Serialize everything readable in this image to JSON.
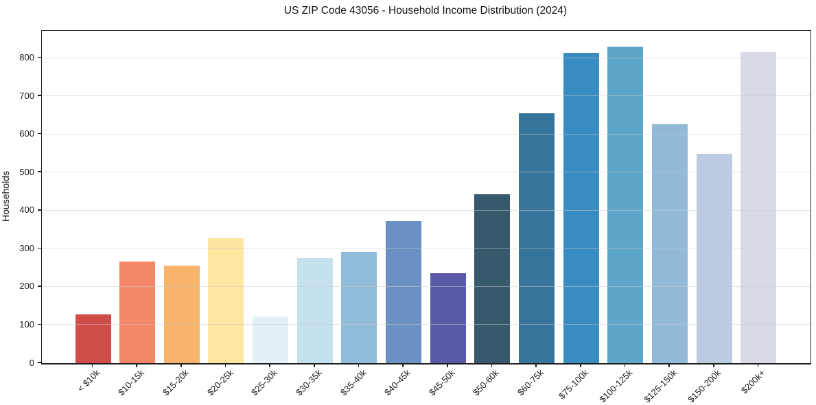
{
  "chart_data": {
    "type": "bar",
    "title": "US ZIP Code 43056 - Household Income Distribution (2024)",
    "xlabel": "",
    "ylabel": "Households",
    "categories": [
      "< $10k",
      "$10-15k",
      "$15-20k",
      "$20-25k",
      "$25-30k",
      "$30-35k",
      "$35-40k",
      "$40-45k",
      "$45-50k",
      "$50-60k",
      "$60-75k",
      "$75-100k",
      "$100-125k",
      "$125-150k",
      "$150-200k",
      "$200k+"
    ],
    "values": [
      128,
      267,
      256,
      327,
      122,
      275,
      291,
      372,
      235,
      442,
      655,
      814,
      830,
      627,
      549,
      815
    ],
    "bar_colors": [
      "#d14d4a",
      "#f48669",
      "#f9b46c",
      "#fce6a0",
      "#e3f1f5",
      "#c4e1ed",
      "#90bcd9",
      "#6b90c4",
      "#5b5aa8",
      "#36596b",
      "#37749b",
      "#388cc2",
      "#5da6c9",
      "#92b9d6",
      "#bdcbe2",
      "#d9dae8"
    ],
    "yticks": [
      0,
      100,
      200,
      300,
      400,
      500,
      600,
      700,
      800
    ],
    "ylim": [
      0,
      871
    ],
    "grid": "horizontal",
    "legend": "none",
    "background": "#ffffff",
    "spine_color": "#1f1f1f"
  }
}
